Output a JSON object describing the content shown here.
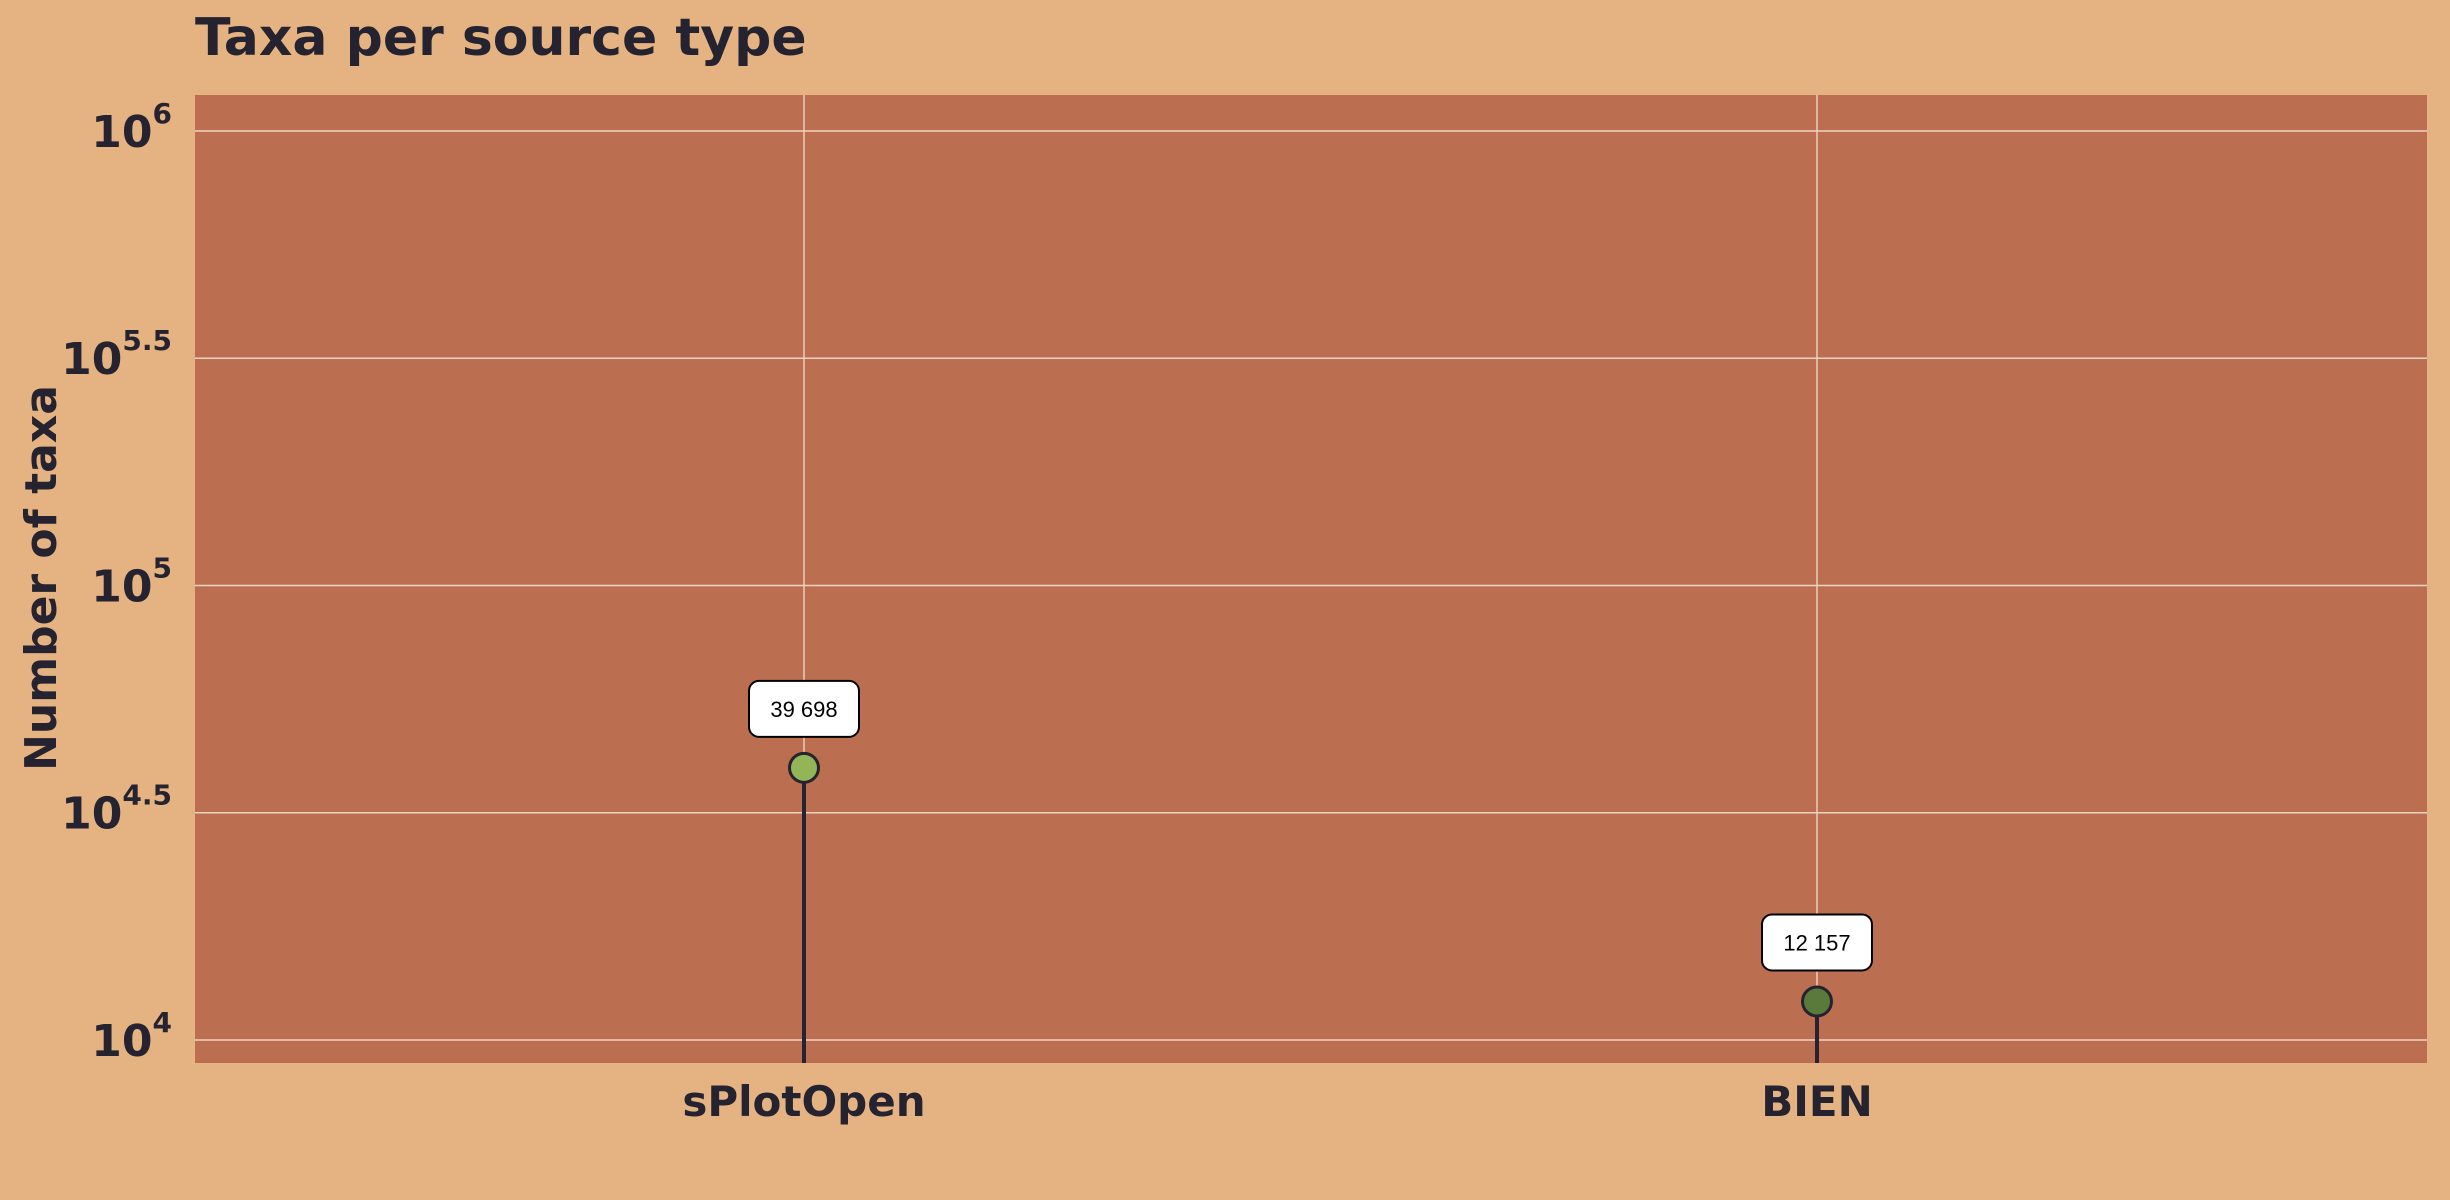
{
  "chart_data": {
    "type": "lollipop",
    "title": "Taxa per source type",
    "ylabel": "Number of taxa",
    "xlabel": "",
    "y_scale": "log10",
    "ylim": [
      8900,
      1200000
    ],
    "grid": true,
    "categories": [
      "sPlotOpen",
      "BIEN"
    ],
    "values": [
      39698,
      12157
    ],
    "data_labels": [
      "39 698",
      "12 157"
    ],
    "point_colors": [
      "#92b558",
      "#5a7a3c"
    ],
    "y_ticks": [
      {
        "value": 10000,
        "base": "10",
        "exp": "4"
      },
      {
        "value": 31623,
        "base": "10",
        "exp": "4.5"
      },
      {
        "value": 100000,
        "base": "10",
        "exp": "5"
      },
      {
        "value": 316228,
        "base": "10",
        "exp": "5.5"
      },
      {
        "value": 1000000,
        "base": "10",
        "exp": "6"
      }
    ],
    "colors": {
      "page_background": "#e5b282",
      "plot_background": "#bc6f50",
      "grid": "#efd3c4",
      "stem": "#252330",
      "text": "#252330"
    }
  }
}
